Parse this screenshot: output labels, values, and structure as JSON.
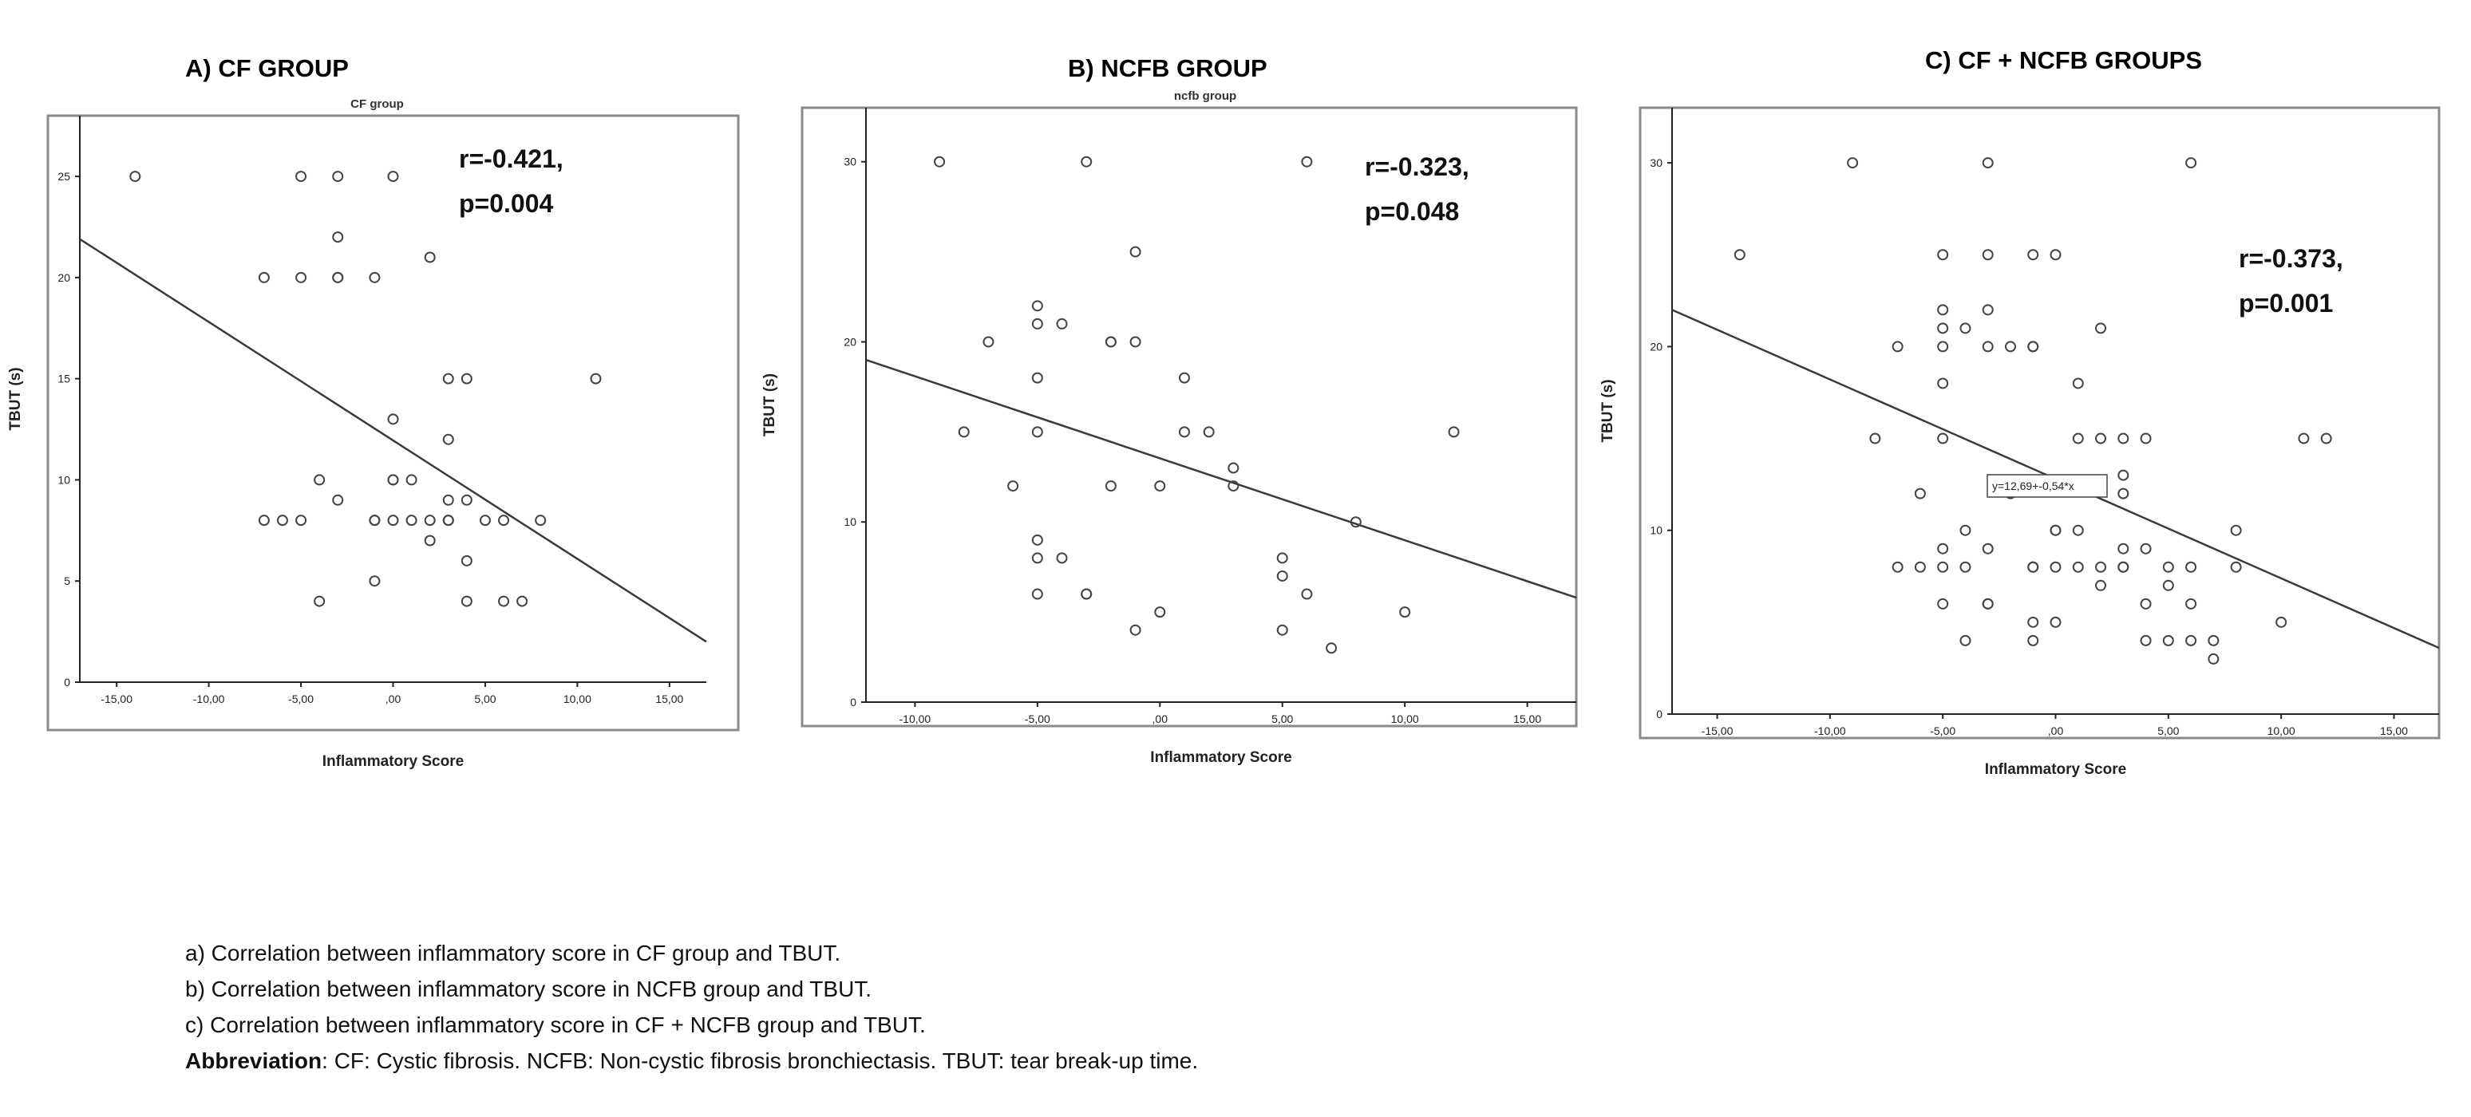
{
  "panels": [
    {
      "heading": "A) CF GROUP",
      "chart_data": {
        "type": "scatter",
        "title": "CF group",
        "xlabel": "Inflammatory Score",
        "ylabel": "TBUT (s)",
        "xlim": [
          -17,
          17
        ],
        "ylim": [
          0,
          28
        ],
        "xticks": [
          -15,
          -10,
          -5,
          0,
          5,
          10,
          15
        ],
        "xtick_labels": [
          "-15,00",
          "-10,00",
          "-5,00",
          ",00",
          "5,00",
          "10,00",
          "15,00"
        ],
        "yticks": [
          0,
          5,
          10,
          15,
          20,
          25
        ],
        "ytick_labels": [
          "0",
          "5",
          "10",
          "15",
          "20",
          "25"
        ],
        "points": [
          [
            -14,
            25
          ],
          [
            -5,
            25
          ],
          [
            -3,
            25
          ],
          [
            0,
            25
          ],
          [
            -3,
            22
          ],
          [
            -7,
            20
          ],
          [
            -5,
            20
          ],
          [
            -3,
            20
          ],
          [
            -3,
            20
          ],
          [
            -1,
            20
          ],
          [
            2,
            21
          ],
          [
            3,
            15
          ],
          [
            4,
            15
          ],
          [
            11,
            15
          ],
          [
            0,
            13
          ],
          [
            3,
            12
          ],
          [
            -4,
            10
          ],
          [
            0,
            10
          ],
          [
            0,
            10
          ],
          [
            1,
            10
          ],
          [
            -3,
            9
          ],
          [
            3,
            9
          ],
          [
            4,
            9
          ],
          [
            -7,
            8
          ],
          [
            -6,
            8
          ],
          [
            -5,
            8
          ],
          [
            -1,
            8
          ],
          [
            -1,
            8
          ],
          [
            0,
            8
          ],
          [
            1,
            8
          ],
          [
            2,
            8
          ],
          [
            3,
            8
          ],
          [
            3,
            8
          ],
          [
            5,
            8
          ],
          [
            6,
            8
          ],
          [
            8,
            8
          ],
          [
            2,
            7
          ],
          [
            4,
            6
          ],
          [
            -1,
            5
          ],
          [
            -4,
            4
          ],
          [
            4,
            4
          ],
          [
            6,
            4
          ],
          [
            7,
            4
          ]
        ],
        "fit_line": {
          "x": [
            -17,
            17
          ],
          "y": [
            21.9,
            2.0
          ]
        },
        "r_label": "r=-0.421,",
        "p_label": "p=0.004"
      }
    },
    {
      "heading": "B) NCFB GROUP",
      "chart_data": {
        "type": "scatter",
        "title": "ncfb group",
        "xlabel": "Inflammatory Score",
        "ylabel": "TBUT (s)",
        "xlim": [
          -12,
          17
        ],
        "ylim": [
          0,
          33
        ],
        "xticks": [
          -10,
          -5,
          0,
          5,
          10,
          15
        ],
        "xtick_labels": [
          "-10,00",
          "-5,00",
          ",00",
          "5,00",
          "10,00",
          "15,00"
        ],
        "yticks": [
          0,
          10,
          20,
          30
        ],
        "ytick_labels": [
          "0",
          "10",
          "20",
          "30"
        ],
        "points": [
          [
            -9,
            30
          ],
          [
            -3,
            30
          ],
          [
            6,
            30
          ],
          [
            -1,
            25
          ],
          [
            -5,
            22
          ],
          [
            -5,
            21
          ],
          [
            -4,
            21
          ],
          [
            -7,
            20
          ],
          [
            -2,
            20
          ],
          [
            -2,
            20
          ],
          [
            -1,
            20
          ],
          [
            -5,
            18
          ],
          [
            1,
            18
          ],
          [
            -8,
            15
          ],
          [
            -5,
            15
          ],
          [
            1,
            15
          ],
          [
            2,
            15
          ],
          [
            12,
            15
          ],
          [
            3,
            13
          ],
          [
            -6,
            12
          ],
          [
            -2,
            12
          ],
          [
            0,
            12
          ],
          [
            3,
            12
          ],
          [
            8,
            10
          ],
          [
            -5,
            9
          ],
          [
            -5,
            8
          ],
          [
            -4,
            8
          ],
          [
            5,
            8
          ],
          [
            5,
            7
          ],
          [
            -5,
            6
          ],
          [
            -3,
            6
          ],
          [
            -3,
            6
          ],
          [
            6,
            6
          ],
          [
            0,
            5
          ],
          [
            10,
            5
          ],
          [
            -1,
            4
          ],
          [
            5,
            4
          ],
          [
            7,
            3
          ]
        ],
        "fit_line": {
          "x": [
            -12,
            17
          ],
          "y": [
            19.0,
            5.8
          ]
        },
        "r_label": "r=-0.323,",
        "p_label": "p=0.048"
      }
    },
    {
      "heading": "C) CF + NCFB  GROUPS",
      "chart_data": {
        "type": "scatter",
        "title": "",
        "xlabel": "Inflammatory Score",
        "ylabel": "TBUT (s)",
        "xlim": [
          -17,
          17
        ],
        "ylim": [
          0,
          33
        ],
        "xticks": [
          -15,
          -10,
          -5,
          0,
          5,
          10,
          15
        ],
        "xtick_labels": [
          "-15,00",
          "-10,00",
          "-5,00",
          ",00",
          "5,00",
          "10,00",
          "15,00"
        ],
        "yticks": [
          0,
          10,
          20,
          30
        ],
        "ytick_labels": [
          "0",
          "10",
          "20",
          "30"
        ],
        "points": [
          [
            -9,
            30
          ],
          [
            -3,
            30
          ],
          [
            6,
            30
          ],
          [
            -14,
            25
          ],
          [
            -5,
            25
          ],
          [
            -3,
            25
          ],
          [
            -1,
            25
          ],
          [
            0,
            25
          ],
          [
            -5,
            22
          ],
          [
            -3,
            22
          ],
          [
            -5,
            21
          ],
          [
            -4,
            21
          ],
          [
            2,
            21
          ],
          [
            -7,
            20
          ],
          [
            -5,
            20
          ],
          [
            -3,
            20
          ],
          [
            -2,
            20
          ],
          [
            -1,
            20
          ],
          [
            -1,
            20
          ],
          [
            1,
            18
          ],
          [
            -5,
            18
          ],
          [
            -8,
            15
          ],
          [
            -5,
            15
          ],
          [
            1,
            15
          ],
          [
            2,
            15
          ],
          [
            3,
            15
          ],
          [
            4,
            15
          ],
          [
            11,
            15
          ],
          [
            12,
            15
          ],
          [
            3,
            13
          ],
          [
            -6,
            12
          ],
          [
            -2,
            12
          ],
          [
            3,
            12
          ],
          [
            -4,
            10
          ],
          [
            0,
            10
          ],
          [
            0,
            10
          ],
          [
            1,
            10
          ],
          [
            8,
            10
          ],
          [
            -5,
            9
          ],
          [
            -3,
            9
          ],
          [
            3,
            9
          ],
          [
            4,
            9
          ],
          [
            -7,
            8
          ],
          [
            -6,
            8
          ],
          [
            -5,
            8
          ],
          [
            -4,
            8
          ],
          [
            -1,
            8
          ],
          [
            -1,
            8
          ],
          [
            0,
            8
          ],
          [
            1,
            8
          ],
          [
            2,
            8
          ],
          [
            3,
            8
          ],
          [
            3,
            8
          ],
          [
            5,
            8
          ],
          [
            6,
            8
          ],
          [
            8,
            8
          ],
          [
            2,
            7
          ],
          [
            5,
            7
          ],
          [
            -5,
            6
          ],
          [
            -3,
            6
          ],
          [
            -3,
            6
          ],
          [
            4,
            6
          ],
          [
            6,
            6
          ],
          [
            -1,
            5
          ],
          [
            0,
            5
          ],
          [
            10,
            5
          ],
          [
            -4,
            4
          ],
          [
            -1,
            4
          ],
          [
            4,
            4
          ],
          [
            5,
            4
          ],
          [
            6,
            4
          ],
          [
            7,
            4
          ],
          [
            7,
            3
          ]
        ],
        "fit_line": {
          "x": [
            -17,
            17
          ],
          "y": [
            22.0,
            3.6
          ]
        },
        "r_label": "r=-0.373,",
        "p_label": "p=0.001",
        "equation_label": "y=12,69+-0,54*x"
      }
    }
  ],
  "notes": {
    "line_a": "a) Correlation between inflammatory score in CF group and TBUT.",
    "line_b": "b) Correlation between inflammatory score in NCFB group and TBUT.",
    "line_c": "c) Correlation between inflammatory score in CF + NCFB group and TBUT.",
    "abbr_label": "Abbreviation",
    "abbr_text": ": CF: Cystic fibrosis. NCFB: Non-cystic fibrosis bronchiectasis. TBUT: tear break-up time."
  }
}
